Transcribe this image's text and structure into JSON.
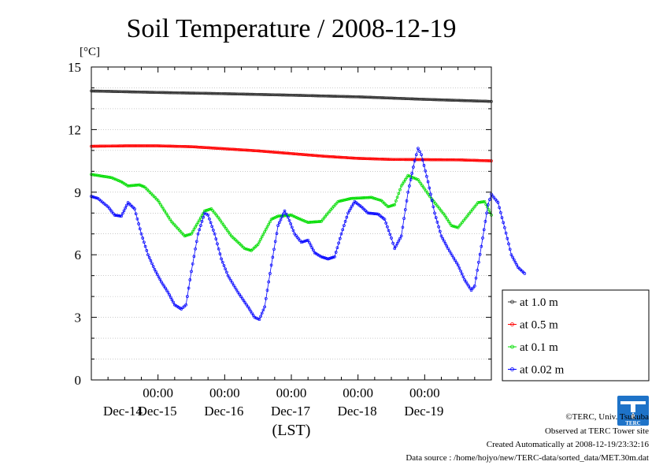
{
  "chart_data": {
    "type": "line",
    "title": "Soil Temperature / 2008-12-19",
    "ylabel": "[°C]",
    "xlabel": "(LST)",
    "ylim": [
      0,
      15
    ],
    "yticks": [
      0,
      3,
      6,
      9,
      12,
      15
    ],
    "xlim": [
      0,
      6
    ],
    "xticks": [
      {
        "x": 1,
        "top": "00:00",
        "bottom": "Dec-15"
      },
      {
        "x": 2,
        "top": "00:00",
        "bottom": "Dec-16"
      },
      {
        "x": 3,
        "top": "00:00",
        "bottom": "Dec-17"
      },
      {
        "x": 4,
        "top": "00:00",
        "bottom": "Dec-18"
      },
      {
        "x": 5,
        "top": "00:00",
        "bottom": "Dec-19"
      }
    ],
    "x_unit": "days since Dec-14 00:00 LST",
    "first_date_label": "Dec-14",
    "grid": true,
    "legend_position": "right",
    "series": [
      {
        "name": "at 1.0 m",
        "color": "#333333",
        "points": [
          [
            0,
            13.85
          ],
          [
            1,
            13.78
          ],
          [
            2,
            13.72
          ],
          [
            3,
            13.65
          ],
          [
            4,
            13.57
          ],
          [
            5,
            13.45
          ],
          [
            6,
            13.35
          ]
        ]
      },
      {
        "name": "at 0.5 m",
        "color": "#ff0000",
        "points": [
          [
            0,
            11.2
          ],
          [
            0.5,
            11.22
          ],
          [
            1,
            11.22
          ],
          [
            1.5,
            11.18
          ],
          [
            2,
            11.08
          ],
          [
            2.5,
            10.98
          ],
          [
            3,
            10.85
          ],
          [
            3.5,
            10.72
          ],
          [
            4,
            10.62
          ],
          [
            4.5,
            10.57
          ],
          [
            5,
            10.56
          ],
          [
            5.5,
            10.55
          ],
          [
            6,
            10.5
          ]
        ]
      },
      {
        "name": "at 0.1 m",
        "color": "#00dd00",
        "points": [
          [
            0,
            9.85
          ],
          [
            0.3,
            9.7
          ],
          [
            0.45,
            9.5
          ],
          [
            0.55,
            9.3
          ],
          [
            0.72,
            9.35
          ],
          [
            0.8,
            9.25
          ],
          [
            1.0,
            8.6
          ],
          [
            1.2,
            7.6
          ],
          [
            1.4,
            6.9
          ],
          [
            1.5,
            7.0
          ],
          [
            1.7,
            8.1
          ],
          [
            1.8,
            8.2
          ],
          [
            1.9,
            7.8
          ],
          [
            2.1,
            6.9
          ],
          [
            2.3,
            6.3
          ],
          [
            2.4,
            6.2
          ],
          [
            2.5,
            6.5
          ],
          [
            2.7,
            7.7
          ],
          [
            2.8,
            7.85
          ],
          [
            3.0,
            7.9
          ],
          [
            3.1,
            7.75
          ],
          [
            3.25,
            7.55
          ],
          [
            3.45,
            7.6
          ],
          [
            3.55,
            8.0
          ],
          [
            3.7,
            8.55
          ],
          [
            3.9,
            8.7
          ],
          [
            4.2,
            8.75
          ],
          [
            4.35,
            8.6
          ],
          [
            4.45,
            8.3
          ],
          [
            4.55,
            8.4
          ],
          [
            4.65,
            9.3
          ],
          [
            4.75,
            9.8
          ],
          [
            4.9,
            9.6
          ],
          [
            5.1,
            8.7
          ],
          [
            5.3,
            7.9
          ],
          [
            5.4,
            7.4
          ],
          [
            5.5,
            7.3
          ],
          [
            5.65,
            7.9
          ],
          [
            5.8,
            8.5
          ],
          [
            5.9,
            8.55
          ],
          [
            6.0,
            7.9
          ]
        ]
      },
      {
        "name": "at 0.02 m",
        "color": "#0000ff",
        "points": [
          [
            0,
            8.8
          ],
          [
            0.1,
            8.7
          ],
          [
            0.25,
            8.3
          ],
          [
            0.35,
            7.9
          ],
          [
            0.45,
            7.85
          ],
          [
            0.55,
            8.5
          ],
          [
            0.65,
            8.2
          ],
          [
            0.75,
            7.0
          ],
          [
            0.85,
            6.0
          ],
          [
            0.95,
            5.3
          ],
          [
            1.05,
            4.7
          ],
          [
            1.15,
            4.2
          ],
          [
            1.25,
            3.6
          ],
          [
            1.35,
            3.4
          ],
          [
            1.42,
            3.6
          ],
          [
            1.5,
            5.2
          ],
          [
            1.6,
            7.0
          ],
          [
            1.7,
            8.0
          ],
          [
            1.75,
            7.9
          ],
          [
            1.85,
            7.0
          ],
          [
            1.95,
            5.8
          ],
          [
            2.05,
            5.0
          ],
          [
            2.2,
            4.2
          ],
          [
            2.35,
            3.5
          ],
          [
            2.45,
            3.0
          ],
          [
            2.52,
            2.9
          ],
          [
            2.6,
            3.5
          ],
          [
            2.7,
            5.5
          ],
          [
            2.8,
            7.4
          ],
          [
            2.9,
            8.1
          ],
          [
            2.95,
            7.8
          ],
          [
            3.05,
            7.0
          ],
          [
            3.15,
            6.6
          ],
          [
            3.25,
            6.7
          ],
          [
            3.35,
            6.1
          ],
          [
            3.45,
            5.9
          ],
          [
            3.55,
            5.8
          ],
          [
            3.65,
            5.9
          ],
          [
            3.75,
            7.0
          ],
          [
            3.85,
            8.0
          ],
          [
            3.95,
            8.55
          ],
          [
            4.05,
            8.3
          ],
          [
            4.15,
            8.0
          ],
          [
            4.3,
            7.95
          ],
          [
            4.4,
            7.7
          ],
          [
            4.5,
            6.8
          ],
          [
            4.55,
            6.3
          ],
          [
            4.65,
            6.9
          ],
          [
            4.75,
            9.0
          ],
          [
            4.85,
            10.5
          ],
          [
            4.9,
            11.1
          ],
          [
            4.95,
            10.8
          ],
          [
            5.05,
            9.5
          ],
          [
            5.15,
            8.0
          ],
          [
            5.25,
            6.9
          ],
          [
            5.35,
            6.3
          ],
          [
            5.5,
            5.5
          ],
          [
            5.6,
            4.8
          ],
          [
            5.7,
            4.3
          ],
          [
            5.75,
            4.5
          ],
          [
            5.85,
            6.4
          ],
          [
            5.95,
            8.4
          ],
          [
            6.0,
            8.9
          ],
          [
            6.1,
            8.5
          ],
          [
            6.2,
            7.3
          ],
          [
            6.3,
            6.0
          ],
          [
            6.4,
            5.4
          ],
          [
            6.5,
            5.1
          ]
        ]
      }
    ]
  },
  "credits": {
    "copyright": "©TERC, Univ. Tsukuba",
    "site": "Observed at TERC Tower site",
    "created": "Created Automatically at 2008-12-19/23:32:16",
    "source": "Data source : /home/hojyo/new/TERC-data/sorted_data/MET.30m.dat",
    "logo_text": "TERC"
  }
}
